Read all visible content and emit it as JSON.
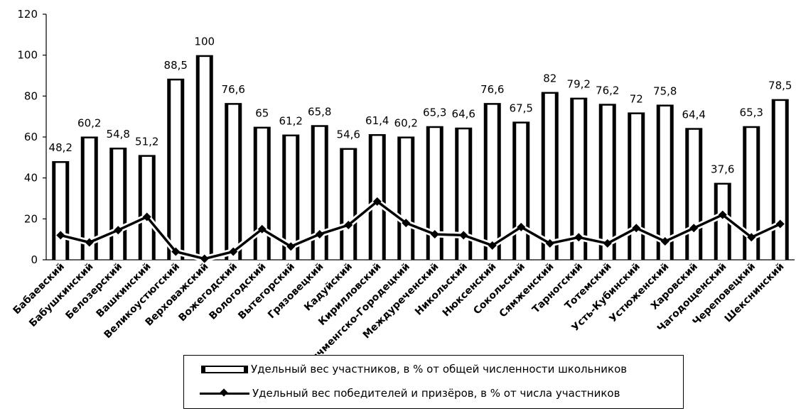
{
  "chart_data": {
    "type": "bar",
    "categories": [
      "Бабаевский",
      "Бабушкинский",
      "Белозерский",
      "Вашкинский",
      "Великоустюгский",
      "Верховажский",
      "Вожегодский",
      "Вологодский",
      "Вытегорский",
      "Грязовецкий",
      "Кадуйский",
      "Кирилловский",
      "Кичменгско-Городецкий",
      "Междуреченский",
      "Никольский",
      "Нюксенский",
      "Сокольский",
      "Сямженский",
      "Тарногский",
      "Тотемский",
      "Усть-Кубинский",
      "Устюженский",
      "Харовский",
      "Чагодощенский",
      "Череповецкий",
      "Шекснинский"
    ],
    "series": [
      {
        "name": "Удельный вес участников, в % от общей численности школьников",
        "kind": "bar",
        "values": [
          48.2,
          60.2,
          54.8,
          51.2,
          88.5,
          100,
          76.6,
          65,
          61.2,
          65.8,
          54.6,
          61.4,
          60.2,
          65.3,
          64.6,
          76.6,
          67.5,
          82,
          79.2,
          76.2,
          72,
          75.8,
          64.4,
          37.6,
          65.3,
          78.5
        ],
        "labels": [
          "48,2",
          "60,2",
          "54,8",
          "51,2",
          "88,5",
          "100",
          "76,6",
          "65",
          "61,2",
          "65,8",
          "54,6",
          "61,4",
          "60,2",
          "65,3",
          "64,6",
          "76,6",
          "67,5",
          "82",
          "79,2",
          "76,2",
          "72",
          "75,8",
          "64,4",
          "37,6",
          "65,3",
          "78,5"
        ]
      },
      {
        "name": "Удельный вес победителей и призёров, в % от числа участников",
        "kind": "line",
        "values": [
          12,
          8.5,
          14.5,
          21,
          4,
          0.5,
          4,
          15,
          6.5,
          12.5,
          17,
          28.5,
          18,
          12.5,
          12,
          7,
          16,
          8,
          11,
          8,
          15.5,
          9,
          15.5,
          22,
          11,
          17.5
        ]
      }
    ],
    "ylim": [
      0,
      120
    ],
    "yticks": [
      0,
      20,
      40,
      60,
      80,
      100,
      120
    ],
    "ytick_labels": [
      "0",
      "20",
      "40",
      "60",
      "80",
      "100",
      "120"
    ],
    "grid": false,
    "legend_position": "bottom"
  }
}
